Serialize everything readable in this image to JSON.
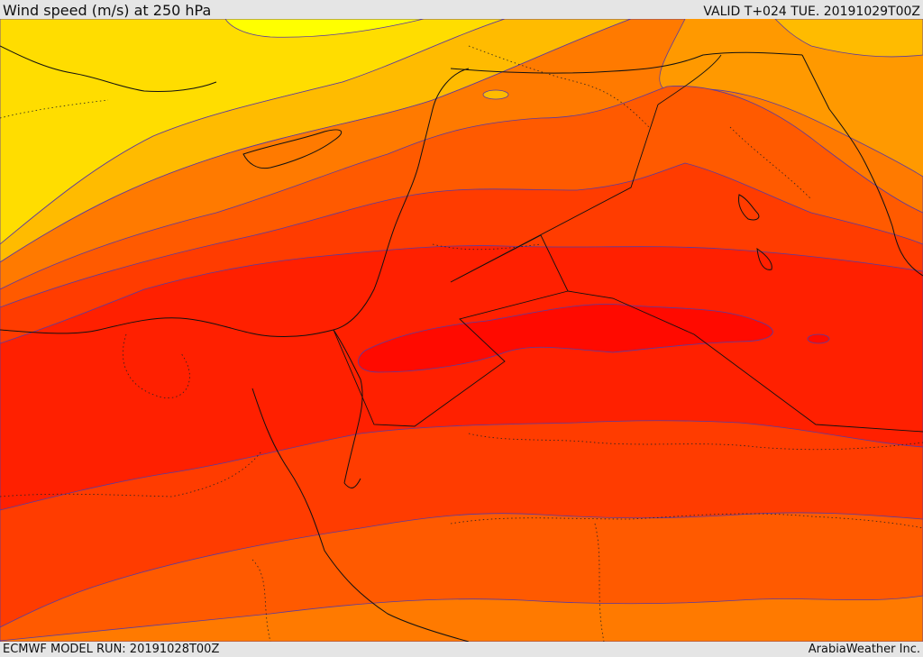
{
  "header": {
    "title": "Wind speed (m/s) at 250 hPa",
    "valid_time": "VALID T+024 TUE. 20191029T00Z"
  },
  "footer": {
    "model_run": "ECMWF MODEL RUN: 20191028T00Z",
    "credit": "ArabiaWeather Inc."
  },
  "map": {
    "field": "wind speed at 250 hPa",
    "fill_colors": {
      "band_1": "#ffff00",
      "band_2": "#ffdd00",
      "band_3": "#ffbb00",
      "band_4": "#ff9900",
      "band_5": "#ff7a00",
      "band_6": "#ff5a00",
      "band_7": "#ff3c00",
      "band_8": "#ff2000",
      "band_9": "#ff0a00"
    },
    "contour_color": "#5a3aa0",
    "coastline_color": "#111111"
  }
}
